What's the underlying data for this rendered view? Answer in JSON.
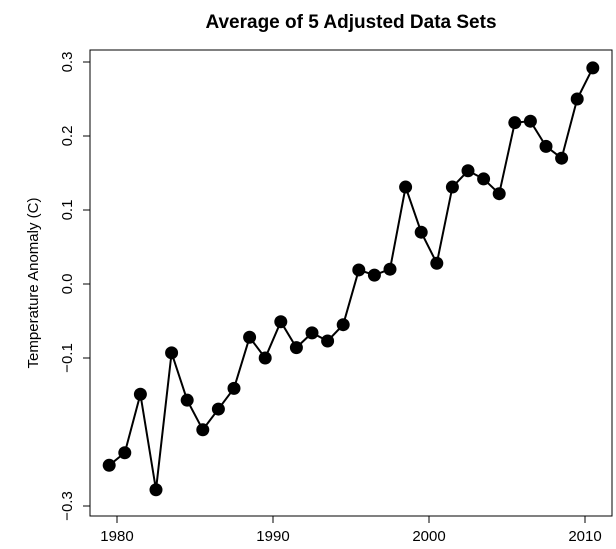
{
  "chart_data": {
    "type": "line",
    "title": "Average of 5 Adjusted Data Sets",
    "y_label": "Temperature Anomaly (C)",
    "x": [
      1979.5,
      1980.5,
      1981.5,
      1982.5,
      1983.5,
      1984.5,
      1985.5,
      1986.5,
      1987.5,
      1988.5,
      1989.5,
      1990.5,
      1991.5,
      1992.5,
      1993.5,
      1994.5,
      1995.5,
      1996.5,
      1997.5,
      1998.5,
      1999.5,
      2000.5,
      2001.5,
      2002.5,
      2003.5,
      2004.5,
      2005.5,
      2006.5,
      2007.5,
      2008.5,
      2009.5,
      2010.5
    ],
    "series": [
      {
        "color": "#000000",
        "values": [
          -0.245,
          -0.228,
          -0.149,
          -0.278,
          -0.093,
          -0.157,
          -0.197,
          -0.169,
          -0.141,
          -0.072,
          -0.1,
          -0.051,
          -0.086,
          -0.066,
          -0.077,
          -0.055,
          0.019,
          0.012,
          0.02,
          0.131,
          0.07,
          0.028,
          0.131,
          0.153,
          0.142,
          0.122,
          0.218,
          0.22,
          0.186,
          0.17,
          0.25,
          0.292
        ]
      }
    ],
    "xlim": [
      1978.27,
      2011.73
    ],
    "ylim": [
      -0.3135,
      0.3162
    ],
    "xticks": [
      1980,
      1990,
      2000,
      2010
    ],
    "yticks": [
      {
        "value": -0.3,
        "label": "−0.3"
      },
      {
        "value": -0.1,
        "label": "−0.1"
      },
      {
        "value": 0,
        "label": "0.0"
      },
      0.1,
      0.2,
      0.3
    ],
    "grid": false
  }
}
